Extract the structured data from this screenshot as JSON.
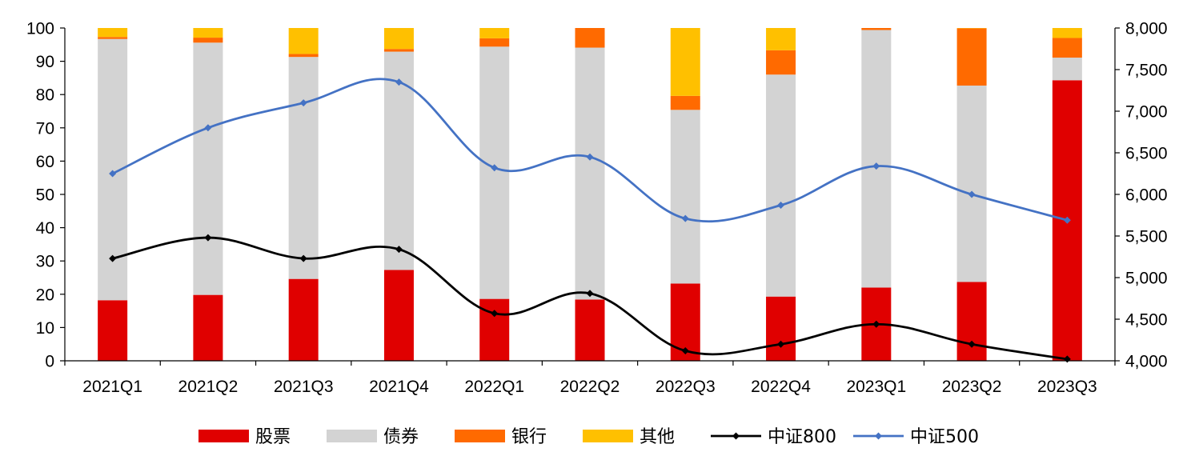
{
  "chart_data": {
    "type": "bar",
    "stacked": true,
    "categories": [
      "2021Q1",
      "2021Q2",
      "2021Q3",
      "2021Q4",
      "2022Q1",
      "2022Q2",
      "2022Q3",
      "2022Q4",
      "2023Q1",
      "2023Q2",
      "2023Q3"
    ],
    "series": [
      {
        "name": "股票",
        "type": "bar",
        "axis": "left",
        "color": "#e00000",
        "values": [
          18.2,
          19.8,
          24.6,
          27.3,
          18.6,
          18.4,
          23.2,
          19.3,
          22.0,
          23.7,
          84.3
        ]
      },
      {
        "name": "债券",
        "type": "bar",
        "axis": "left",
        "color": "#d3d3d3",
        "values": [
          78.5,
          75.8,
          66.7,
          65.6,
          75.8,
          75.7,
          52.2,
          66.7,
          77.4,
          59.0,
          6.8
        ]
      },
      {
        "name": "银行",
        "type": "bar",
        "axis": "left",
        "color": "#ff6a00",
        "values": [
          0.6,
          1.5,
          0.9,
          0.8,
          2.5,
          5.9,
          4.2,
          7.3,
          0.6,
          17.2,
          5.9
        ]
      },
      {
        "name": "其他",
        "type": "bar",
        "axis": "left",
        "color": "#ffc000",
        "values": [
          2.7,
          2.9,
          7.8,
          6.3,
          3.1,
          0.0,
          20.4,
          6.7,
          0.0,
          0.1,
          3.0
        ]
      },
      {
        "name": "中证800",
        "type": "line",
        "axis": "right",
        "color": "#000000",
        "values": [
          5230,
          5480,
          5230,
          5340,
          4570,
          4810,
          4120,
          4200,
          4440,
          4200,
          4020
        ]
      },
      {
        "name": "中证500",
        "type": "line",
        "axis": "right",
        "color": "#4472c4",
        "values": [
          6250,
          6800,
          7100,
          7350,
          6320,
          6450,
          5710,
          5870,
          6340,
          6000,
          5690
        ]
      }
    ],
    "y_left": {
      "ylim": [
        0,
        100
      ],
      "ticks": [
        "0",
        "10",
        "20",
        "30",
        "40",
        "50",
        "60",
        "70",
        "80",
        "90",
        "100"
      ]
    },
    "y_right": {
      "ylim": [
        4000,
        8000
      ],
      "ticks": [
        "4,000",
        "4,500",
        "5,000",
        "5,500",
        "6,000",
        "6,500",
        "7,000",
        "7,500",
        "8,000"
      ]
    },
    "grid": false,
    "legend_position": "bottom"
  }
}
